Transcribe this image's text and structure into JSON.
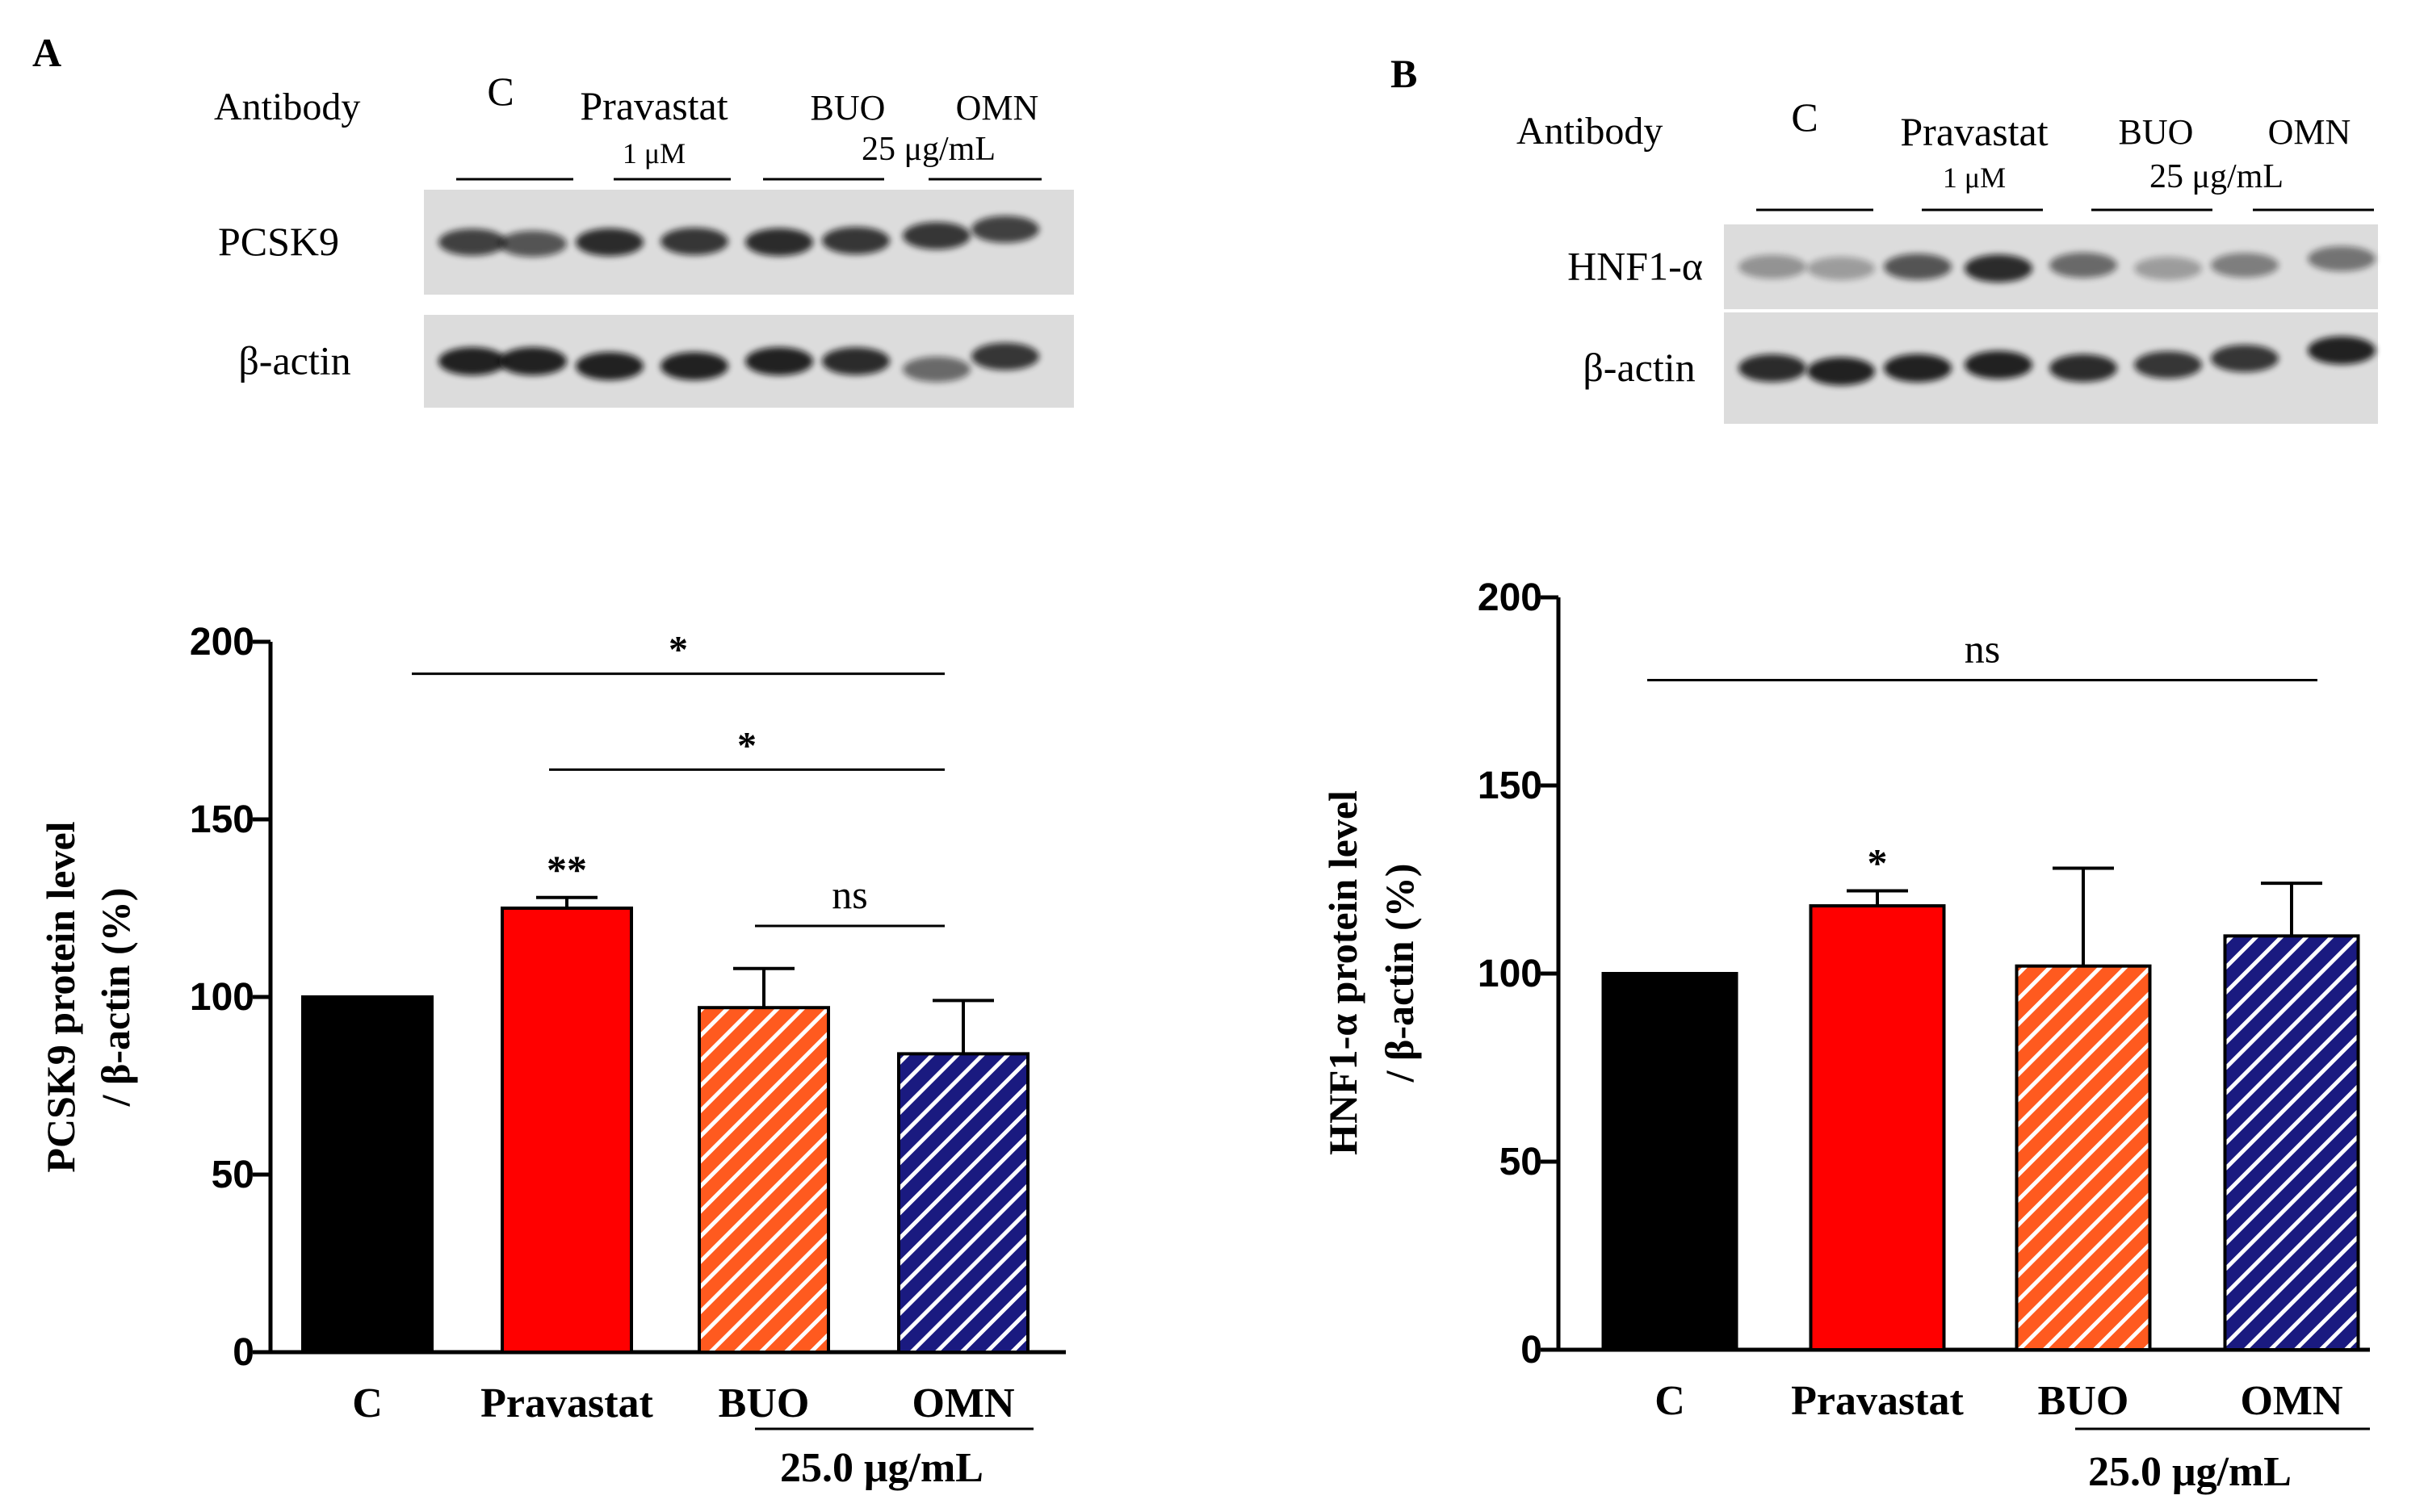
{
  "panels": [
    {
      "letter": "A",
      "blot": {
        "header_label": "Antibody",
        "groups": [
          {
            "name": "C",
            "sub": ""
          },
          {
            "name": "Pravastat",
            "sub": "1 μM"
          },
          {
            "name": "BUO",
            "sub": ""
          },
          {
            "name": "OMN",
            "sub": ""
          }
        ],
        "shared_conc": "25 μg/mL",
        "rows": [
          "PCSK9",
          "β-actin"
        ]
      }
    },
    {
      "letter": "B",
      "blot": {
        "header_label": "Antibody",
        "groups": [
          {
            "name": "C",
            "sub": ""
          },
          {
            "name": "Pravastat",
            "sub": "1 μM"
          },
          {
            "name": "BUO",
            "sub": ""
          },
          {
            "name": "OMN",
            "sub": ""
          }
        ],
        "shared_conc": "25 μg/mL",
        "rows": [
          "HNF1-α",
          "β-actin"
        ]
      }
    }
  ],
  "chart_data": [
    {
      "type": "bar",
      "title": "",
      "categories": [
        "C",
        "Pravastat",
        "BUO",
        "OMN"
      ],
      "values": [
        100,
        125,
        97,
        84
      ],
      "errors": [
        0,
        3,
        11,
        15
      ],
      "ylabel_line1": "PCSK9 protein level",
      "ylabel_line2": "/ β-actin (%)",
      "ylim": [
        0,
        200
      ],
      "yticks": [
        0,
        50,
        100,
        150,
        200
      ],
      "group_label": "25.0 μg/mL",
      "bar_markers": [
        "",
        "**",
        "",
        ""
      ],
      "brackets": [
        {
          "from": 0,
          "to": 3,
          "label": "*"
        },
        {
          "from": 1,
          "to": 3,
          "label": "*"
        },
        {
          "from": 2,
          "to": 3,
          "label": "ns"
        }
      ],
      "colors": [
        "#000000",
        "#ff0000",
        "#ff5a1f",
        "#1a1a80"
      ],
      "hatched": [
        false,
        false,
        true,
        true
      ]
    },
    {
      "type": "bar",
      "title": "",
      "categories": [
        "C",
        "Pravastat",
        "BUO",
        "OMN"
      ],
      "values": [
        100,
        118,
        102,
        110
      ],
      "errors": [
        0,
        4,
        26,
        14
      ],
      "ylabel_line1": "HNF1-α protein level",
      "ylabel_line2": "/ β-actin (%)",
      "ylim": [
        0,
        200
      ],
      "yticks": [
        0,
        50,
        100,
        150,
        200
      ],
      "group_label": "25.0 μg/mL",
      "bar_markers": [
        "",
        "*",
        "",
        ""
      ],
      "brackets": [
        {
          "from": 0,
          "to": 3,
          "label": "ns"
        }
      ],
      "colors": [
        "#000000",
        "#ff0000",
        "#ff5a1f",
        "#1a1a80"
      ],
      "hatched": [
        false,
        false,
        true,
        true
      ]
    }
  ]
}
